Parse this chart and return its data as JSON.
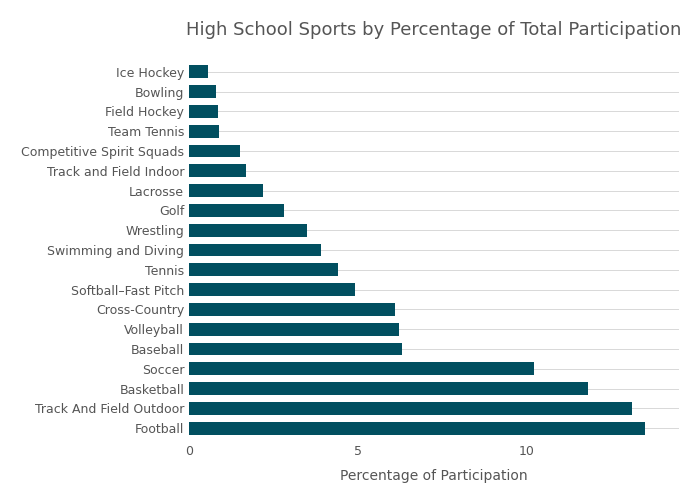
{
  "title": "High School Sports by Percentage of Total Participation",
  "xlabel": "Percentage of Participation",
  "categories": [
    "Football",
    "Track And Field Outdoor",
    "Basketball",
    "Soccer",
    "Baseball",
    "Volleyball",
    "Cross-Country",
    "Softball–Fast Pitch",
    "Tennis",
    "Swimming and Diving",
    "Wrestling",
    "Golf",
    "Lacrosse",
    "Track and Field Indoor",
    "Competitive Spirit Squads",
    "Team Tennis",
    "Field Hockey",
    "Bowling",
    "Ice Hockey"
  ],
  "values": [
    13.5,
    13.1,
    11.8,
    10.2,
    6.3,
    6.2,
    6.1,
    4.9,
    4.4,
    3.9,
    3.5,
    2.8,
    2.2,
    1.7,
    1.5,
    0.9,
    0.85,
    0.8,
    0.55
  ],
  "bar_color": "#014f60",
  "background_color": "#ffffff",
  "grid_color": "#d8d8d8",
  "text_color": "#555555",
  "title_fontsize": 13,
  "label_fontsize": 10,
  "tick_fontsize": 9,
  "xlim": [
    0,
    14.5
  ],
  "xticks": [
    0,
    5,
    10
  ]
}
